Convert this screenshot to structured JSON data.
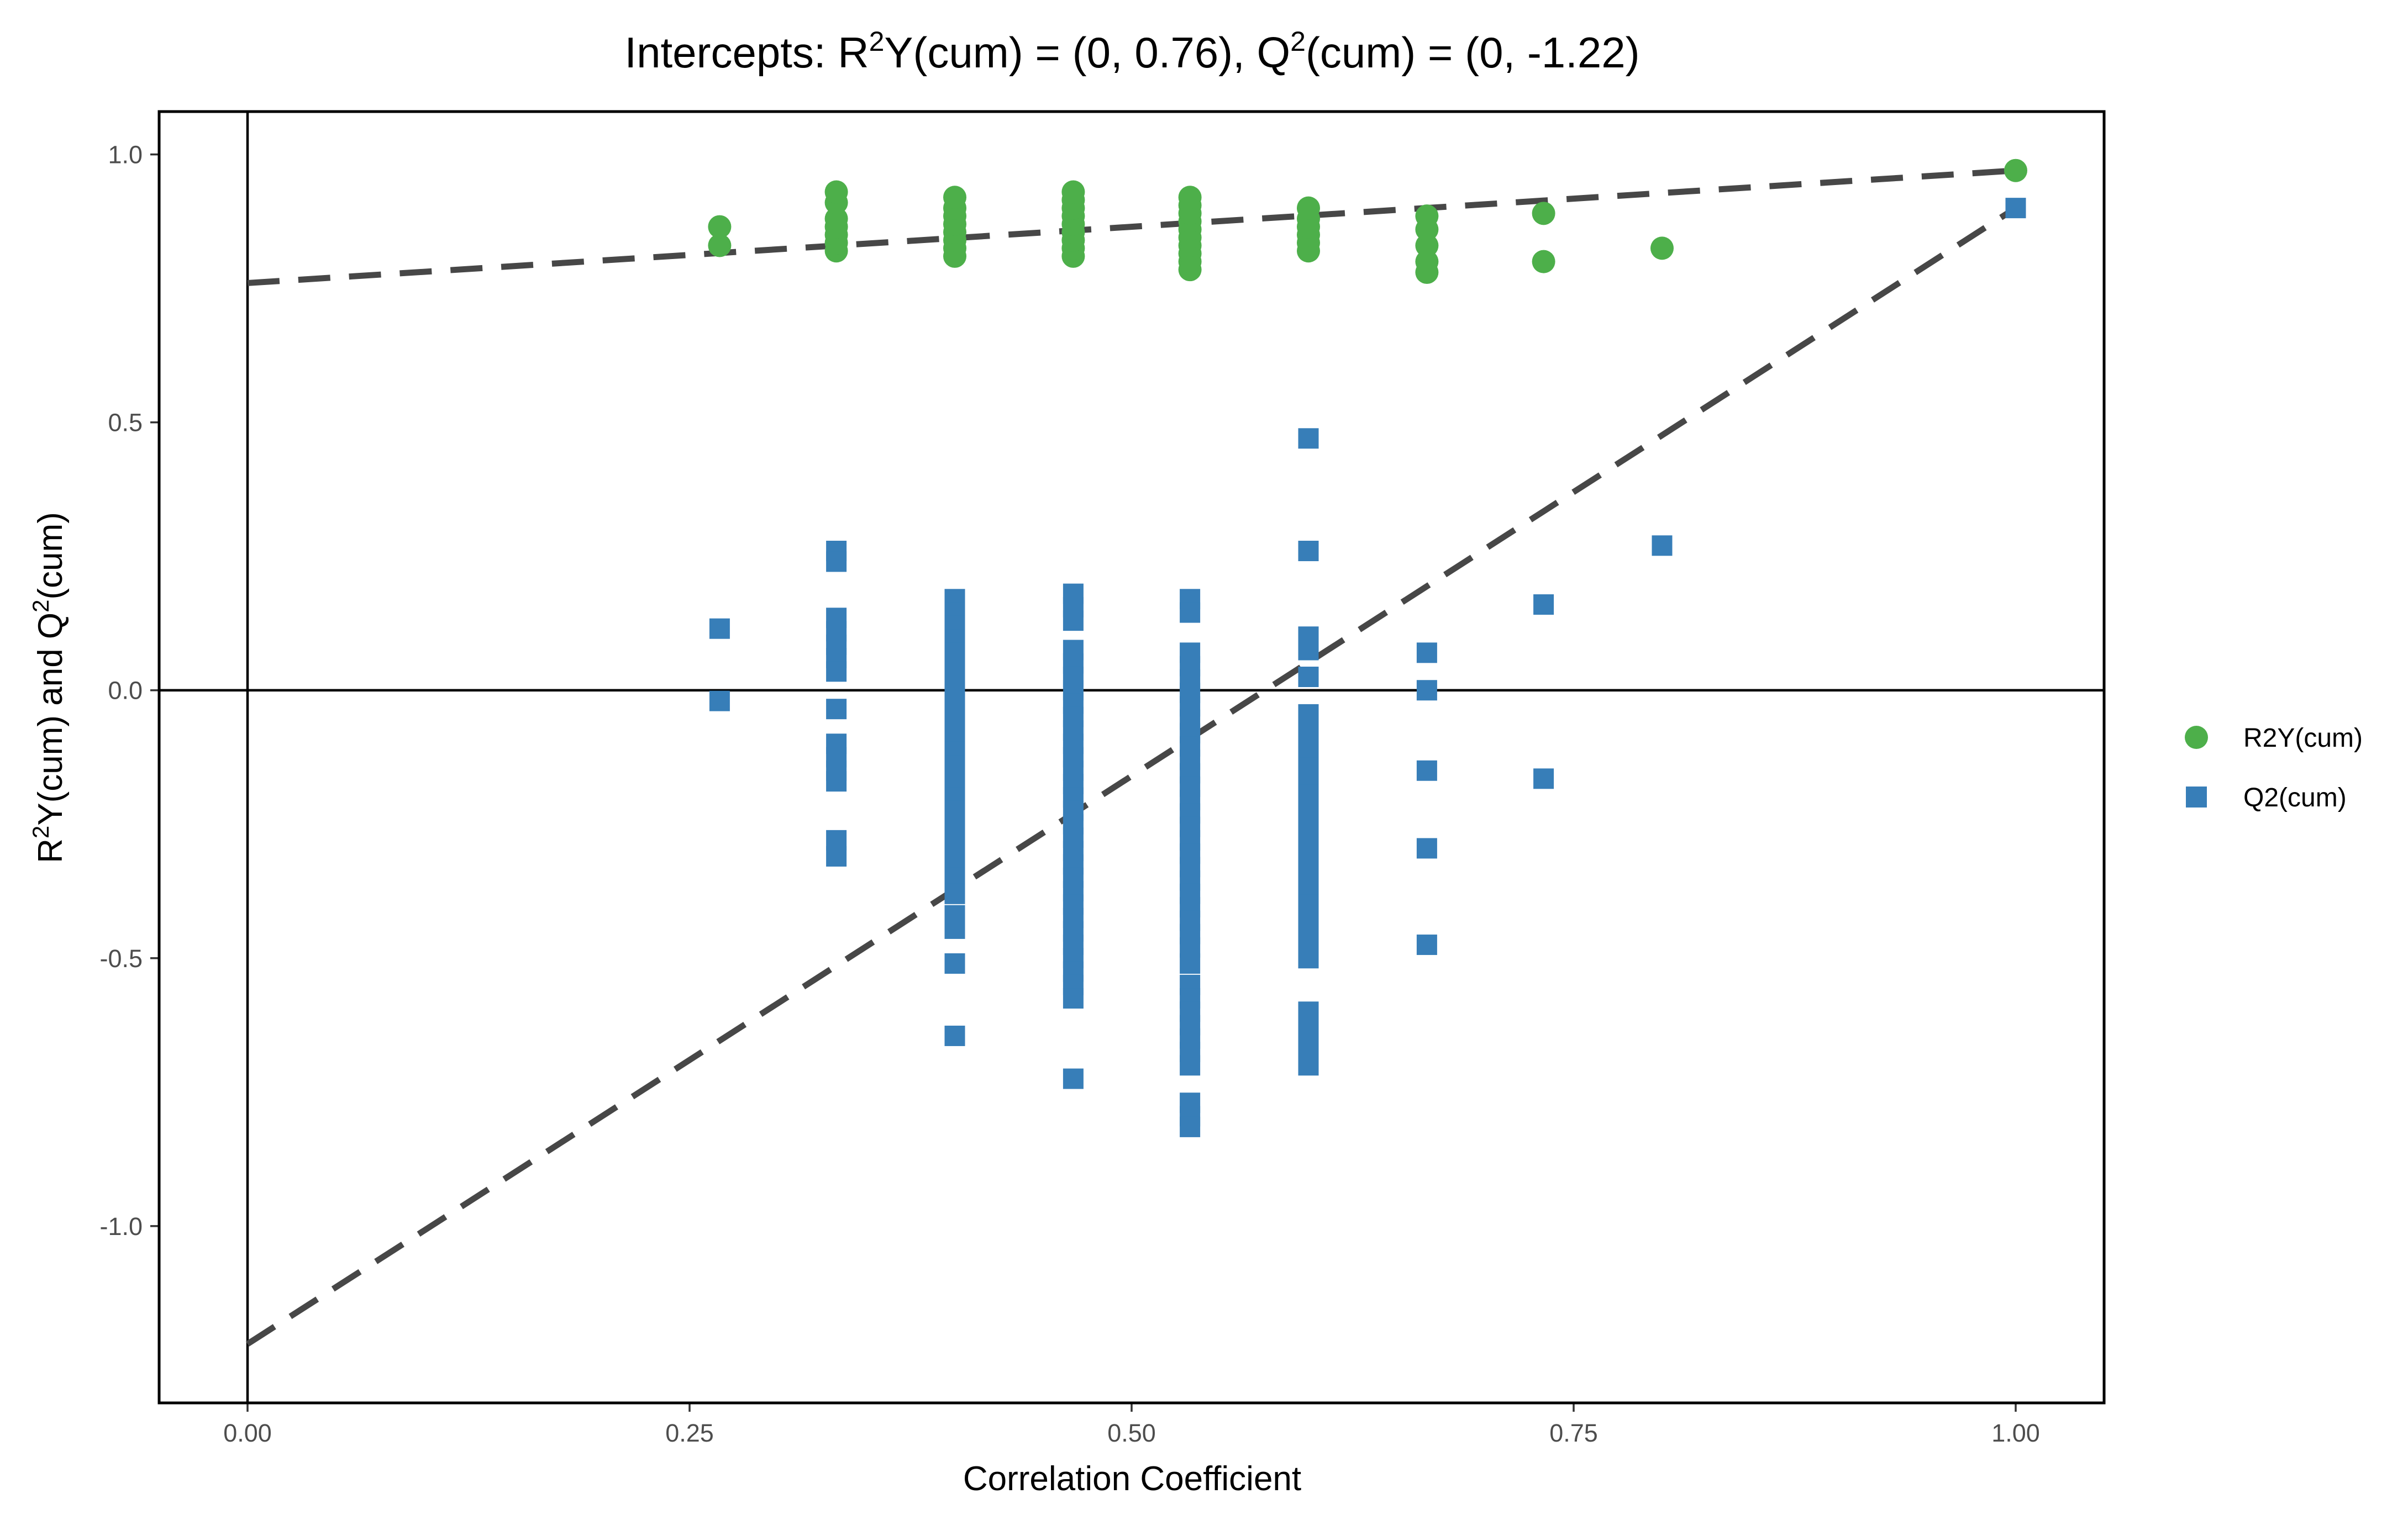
{
  "chart_data": {
    "type": "scatter",
    "title": "Intercepts: R²Y(cum) = (0, 0.76), Q²(cum) = (0, -1.22)",
    "title_parts": {
      "prefix": "Intercepts: R",
      "sup1": "2",
      "mid": "Y(cum) = (0, 0.76), Q",
      "sup2": "2",
      "suffix": "(cum) = (0, -1.22)"
    },
    "xlabel": "Correlation Coefficient",
    "ylabel_parts": {
      "a": "R",
      "sup1": "2",
      "b": "Y(cum) and Q",
      "sup2": "2",
      "c": "(cum)"
    },
    "xlim": [
      -0.05,
      1.05
    ],
    "ylim": [
      -1.33,
      1.08
    ],
    "x_ticks": [
      0,
      0.25,
      0.5,
      0.75,
      1.0
    ],
    "x_tick_labels": [
      "0.00",
      "0.25",
      "0.50",
      "0.75",
      "1.00"
    ],
    "y_ticks": [
      -1.0,
      -0.5,
      0,
      0.5,
      1.0
    ],
    "y_tick_labels": [
      "-1.0",
      "-0.5",
      "0.0",
      "0.5",
      "1.0"
    ],
    "grid": false,
    "legend_position": "right",
    "colors": {
      "r2y": "#4daf4a",
      "q2": "#377eb8",
      "reg_line": "#474747"
    },
    "series": [
      {
        "name": "R2Y(cum)",
        "marker": "circle",
        "points": [
          [
            0.267,
            0.83
          ],
          [
            0.267,
            0.865
          ],
          [
            0.333,
            0.82
          ],
          [
            0.333,
            0.835
          ],
          [
            0.333,
            0.85
          ],
          [
            0.333,
            0.865
          ],
          [
            0.333,
            0.88
          ],
          [
            0.333,
            0.91
          ],
          [
            0.333,
            0.93
          ],
          [
            0.4,
            0.81
          ],
          [
            0.4,
            0.825
          ],
          [
            0.4,
            0.84
          ],
          [
            0.4,
            0.855
          ],
          [
            0.4,
            0.87
          ],
          [
            0.4,
            0.885
          ],
          [
            0.4,
            0.9
          ],
          [
            0.4,
            0.92
          ],
          [
            0.467,
            0.81
          ],
          [
            0.467,
            0.825
          ],
          [
            0.467,
            0.84
          ],
          [
            0.467,
            0.855
          ],
          [
            0.467,
            0.87
          ],
          [
            0.467,
            0.885
          ],
          [
            0.467,
            0.9
          ],
          [
            0.467,
            0.915
          ],
          [
            0.467,
            0.93
          ],
          [
            0.533,
            0.785
          ],
          [
            0.533,
            0.8
          ],
          [
            0.533,
            0.815
          ],
          [
            0.533,
            0.83
          ],
          [
            0.533,
            0.845
          ],
          [
            0.533,
            0.86
          ],
          [
            0.533,
            0.875
          ],
          [
            0.533,
            0.89
          ],
          [
            0.533,
            0.905
          ],
          [
            0.533,
            0.92
          ],
          [
            0.6,
            0.82
          ],
          [
            0.6,
            0.835
          ],
          [
            0.6,
            0.85
          ],
          [
            0.6,
            0.865
          ],
          [
            0.6,
            0.88
          ],
          [
            0.6,
            0.9
          ],
          [
            0.667,
            0.78
          ],
          [
            0.667,
            0.8
          ],
          [
            0.667,
            0.83
          ],
          [
            0.667,
            0.86
          ],
          [
            0.667,
            0.885
          ],
          [
            0.733,
            0.8
          ],
          [
            0.733,
            0.89
          ],
          [
            0.8,
            0.825
          ],
          [
            1.0,
            0.97
          ]
        ]
      },
      {
        "name": "Q2(cum)",
        "marker": "square",
        "points": [
          [
            0.267,
            0.115
          ],
          [
            0.267,
            -0.02
          ],
          [
            0.333,
            0.26
          ],
          [
            0.333,
            0.24
          ],
          [
            0.333,
            0.135
          ],
          [
            0.333,
            0.11
          ],
          [
            0.333,
            0.085
          ],
          [
            0.333,
            0.06
          ],
          [
            0.333,
            0.035
          ],
          [
            0.333,
            -0.035
          ],
          [
            0.333,
            -0.1
          ],
          [
            0.333,
            -0.125
          ],
          [
            0.333,
            -0.15
          ],
          [
            0.333,
            -0.17
          ],
          [
            0.333,
            -0.28
          ],
          [
            0.333,
            -0.31
          ],
          [
            0.4,
            0.17
          ],
          [
            0.4,
            0.145
          ],
          [
            0.4,
            0.12
          ],
          [
            0.4,
            0.095
          ],
          [
            0.4,
            0.07
          ],
          [
            0.4,
            0.045
          ],
          [
            0.4,
            0.02
          ],
          [
            0.4,
            -0.005
          ],
          [
            0.4,
            -0.03
          ],
          [
            0.4,
            -0.055
          ],
          [
            0.4,
            -0.09
          ],
          [
            0.4,
            -0.115
          ],
          [
            0.4,
            -0.14
          ],
          [
            0.4,
            -0.175
          ],
          [
            0.4,
            -0.2
          ],
          [
            0.4,
            -0.225
          ],
          [
            0.4,
            -0.25
          ],
          [
            0.4,
            -0.275
          ],
          [
            0.4,
            -0.3
          ],
          [
            0.4,
            -0.325
          ],
          [
            0.4,
            -0.35
          ],
          [
            0.4,
            -0.38
          ],
          [
            0.4,
            -0.42
          ],
          [
            0.4,
            -0.445
          ],
          [
            0.4,
            -0.51
          ],
          [
            0.4,
            -0.645
          ],
          [
            0.467,
            0.18
          ],
          [
            0.467,
            0.155
          ],
          [
            0.467,
            0.13
          ],
          [
            0.467,
            0.075
          ],
          [
            0.467,
            0.05
          ],
          [
            0.467,
            0.025
          ],
          [
            0.467,
            0.0
          ],
          [
            0.467,
            -0.025
          ],
          [
            0.467,
            -0.05
          ],
          [
            0.467,
            -0.075
          ],
          [
            0.467,
            -0.1
          ],
          [
            0.467,
            -0.125
          ],
          [
            0.467,
            -0.15
          ],
          [
            0.467,
            -0.175
          ],
          [
            0.467,
            -0.2
          ],
          [
            0.467,
            -0.225
          ],
          [
            0.467,
            -0.25
          ],
          [
            0.467,
            -0.275
          ],
          [
            0.467,
            -0.3
          ],
          [
            0.467,
            -0.325
          ],
          [
            0.467,
            -0.35
          ],
          [
            0.467,
            -0.375
          ],
          [
            0.467,
            -0.4
          ],
          [
            0.467,
            -0.425
          ],
          [
            0.467,
            -0.45
          ],
          [
            0.467,
            -0.475
          ],
          [
            0.467,
            -0.5
          ],
          [
            0.467,
            -0.525
          ],
          [
            0.467,
            -0.55
          ],
          [
            0.467,
            -0.575
          ],
          [
            0.467,
            -0.725
          ],
          [
            0.533,
            0.17
          ],
          [
            0.533,
            0.145
          ],
          [
            0.533,
            0.07
          ],
          [
            0.533,
            0.045
          ],
          [
            0.533,
            0.02
          ],
          [
            0.533,
            -0.005
          ],
          [
            0.533,
            -0.03
          ],
          [
            0.533,
            -0.055
          ],
          [
            0.533,
            -0.08
          ],
          [
            0.533,
            -0.105
          ],
          [
            0.533,
            -0.13
          ],
          [
            0.533,
            -0.155
          ],
          [
            0.533,
            -0.18
          ],
          [
            0.533,
            -0.205
          ],
          [
            0.533,
            -0.23
          ],
          [
            0.533,
            -0.255
          ],
          [
            0.533,
            -0.28
          ],
          [
            0.533,
            -0.305
          ],
          [
            0.533,
            -0.33
          ],
          [
            0.533,
            -0.355
          ],
          [
            0.533,
            -0.38
          ],
          [
            0.533,
            -0.405
          ],
          [
            0.533,
            -0.43
          ],
          [
            0.533,
            -0.455
          ],
          [
            0.533,
            -0.48
          ],
          [
            0.533,
            -0.51
          ],
          [
            0.533,
            -0.55
          ],
          [
            0.533,
            -0.575
          ],
          [
            0.533,
            -0.6
          ],
          [
            0.533,
            -0.625
          ],
          [
            0.533,
            -0.65
          ],
          [
            0.533,
            -0.675
          ],
          [
            0.533,
            -0.7
          ],
          [
            0.533,
            -0.77
          ],
          [
            0.533,
            -0.795
          ],
          [
            0.533,
            -0.815
          ],
          [
            0.6,
            0.47
          ],
          [
            0.6,
            0.26
          ],
          [
            0.6,
            0.1
          ],
          [
            0.6,
            0.075
          ],
          [
            0.6,
            0.025
          ],
          [
            0.6,
            -0.045
          ],
          [
            0.6,
            -0.07
          ],
          [
            0.6,
            -0.095
          ],
          [
            0.6,
            -0.12
          ],
          [
            0.6,
            -0.145
          ],
          [
            0.6,
            -0.17
          ],
          [
            0.6,
            -0.195
          ],
          [
            0.6,
            -0.22
          ],
          [
            0.6,
            -0.245
          ],
          [
            0.6,
            -0.27
          ],
          [
            0.6,
            -0.295
          ],
          [
            0.6,
            -0.32
          ],
          [
            0.6,
            -0.345
          ],
          [
            0.6,
            -0.365
          ],
          [
            0.6,
            -0.4
          ],
          [
            0.6,
            -0.425
          ],
          [
            0.6,
            -0.45
          ],
          [
            0.6,
            -0.475
          ],
          [
            0.6,
            -0.5
          ],
          [
            0.6,
            -0.6
          ],
          [
            0.6,
            -0.625
          ],
          [
            0.6,
            -0.65
          ],
          [
            0.6,
            -0.675
          ],
          [
            0.6,
            -0.7
          ],
          [
            0.667,
            0.07
          ],
          [
            0.667,
            0.0
          ],
          [
            0.667,
            -0.15
          ],
          [
            0.667,
            -0.295
          ],
          [
            0.667,
            -0.475
          ],
          [
            0.733,
            0.16
          ],
          [
            0.733,
            -0.165
          ],
          [
            0.8,
            0.27
          ],
          [
            1.0,
            0.9
          ]
        ]
      }
    ],
    "regression_lines": [
      {
        "name": "R2Y(cum) intercept line",
        "from": [
          0,
          0.76
        ],
        "to": [
          1.0,
          0.97
        ]
      },
      {
        "name": "Q2(cum) intercept line",
        "from": [
          0,
          -1.22
        ],
        "to": [
          1.0,
          0.9
        ]
      }
    ],
    "legend": [
      {
        "label": "R2Y(cum)",
        "marker": "circle"
      },
      {
        "label": "Q2(cum)",
        "marker": "square"
      }
    ]
  }
}
